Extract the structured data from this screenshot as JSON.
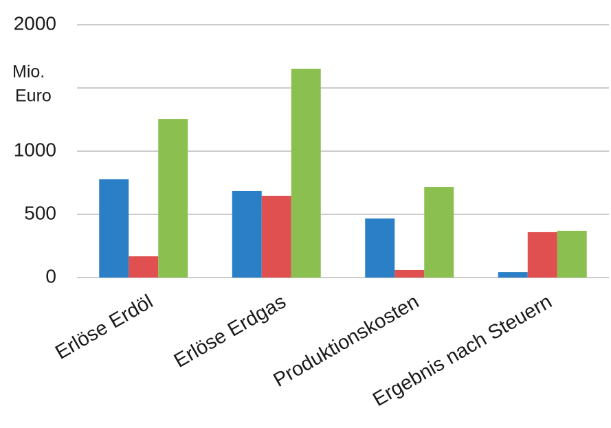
{
  "chart_data": {
    "type": "bar",
    "ylabel": [
      "Mio.",
      "Euro"
    ],
    "categories": [
      "Erlöse Erdöl",
      "Erlöse Erdgas",
      "Produktionskosten",
      "Ergebnis nach Steuern"
    ],
    "series": [
      {
        "color": "#2a7fc6",
        "values": [
          777,
          685,
          467,
          43
        ]
      },
      {
        "color": "#e05050",
        "values": [
          168,
          647,
          60,
          359
        ]
      },
      {
        "color": "#8bbf50",
        "values": [
          1255,
          1652,
          717,
          370
        ]
      }
    ],
    "ylim": [
      0,
      2000
    ],
    "yticks": [
      0,
      500,
      1000,
      {
        "value": 1500,
        "label": null
      },
      2000
    ],
    "grid": true
  }
}
